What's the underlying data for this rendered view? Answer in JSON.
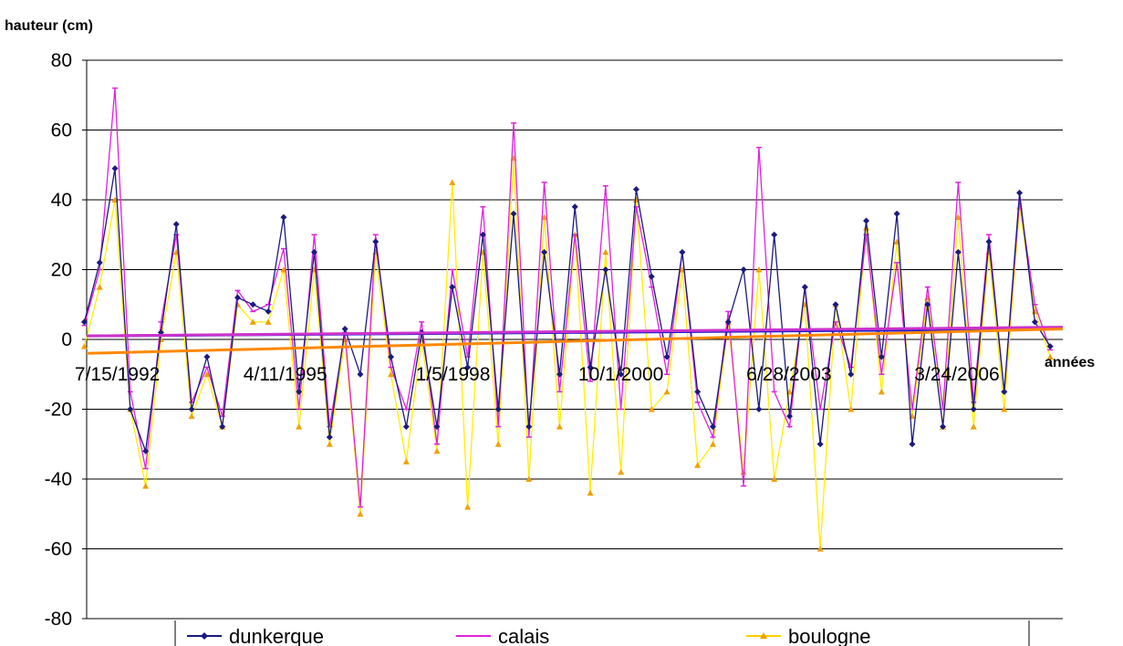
{
  "chart_data": {
    "type": "line",
    "ylabel": "hauteur (cm)",
    "xlabel": "années",
    "ylim": [
      -80,
      80
    ],
    "yticks": [
      80,
      60,
      40,
      20,
      0,
      -20,
      -40,
      -60,
      -80
    ],
    "xticks": [
      "7/15/1992",
      "4/11/1995",
      "1/5/1998",
      "10/1/2000",
      "6/28/2003",
      "3/24/2006"
    ],
    "xlim": [
      "1992-01-15",
      "2007-12-15"
    ],
    "grid": true,
    "legend_position": "bottom",
    "series": [
      {
        "name": "dunkerque",
        "color": "#1a1a80",
        "marker": "diamond",
        "x": [
          "1992-01",
          "1992-04",
          "1992-07",
          "1992-10",
          "1993-01",
          "1993-04",
          "1993-07",
          "1993-10",
          "1994-01",
          "1994-04",
          "1994-07",
          "1994-10",
          "1995-01",
          "1995-04",
          "1995-07",
          "1995-10",
          "1996-01",
          "1996-04",
          "1996-07",
          "1996-10",
          "1997-01",
          "1997-04",
          "1997-07",
          "1997-10",
          "1998-01",
          "1998-04",
          "1998-07",
          "1998-10",
          "1999-01",
          "1999-04",
          "1999-07",
          "1999-10",
          "2000-01",
          "2000-04",
          "2000-07",
          "2000-10",
          "2001-01",
          "2001-04",
          "2001-07",
          "2001-10",
          "2002-01",
          "2002-04",
          "2002-07",
          "2002-10",
          "2003-01",
          "2003-04",
          "2003-07",
          "2003-10",
          "2004-01",
          "2004-04",
          "2004-07",
          "2004-10",
          "2005-01",
          "2005-04",
          "2005-07",
          "2005-10",
          "2006-01",
          "2006-04",
          "2006-07",
          "2006-10",
          "2007-01",
          "2007-04",
          "2007-07",
          "2007-10"
        ],
        "y": [
          5,
          22,
          49,
          -20,
          -32,
          2,
          33,
          -20,
          -5,
          -25,
          12,
          10,
          8,
          35,
          -15,
          25,
          -28,
          3,
          -10,
          28,
          -5,
          -25,
          2,
          -25,
          15,
          -8,
          30,
          -20,
          36,
          -25,
          25,
          -10,
          38,
          -8,
          20,
          -10,
          43,
          18,
          -5,
          25,
          -15,
          -25,
          5,
          20,
          -20,
          30,
          -22,
          15,
          -30,
          10,
          -10,
          34,
          -5,
          36,
          -30,
          10,
          -25,
          25,
          -20,
          28,
          -15,
          42,
          5,
          -2
        ],
        "trend": [
          1,
          3
        ]
      },
      {
        "name": "calais",
        "color": "#e020e0",
        "marker": "dash",
        "x": [
          "1992-01",
          "1992-04",
          "1992-07",
          "1992-10",
          "1993-01",
          "1993-04",
          "1993-07",
          "1993-10",
          "1994-01",
          "1994-04",
          "1994-07",
          "1994-10",
          "1995-01",
          "1995-04",
          "1995-07",
          "1995-10",
          "1996-01",
          "1996-04",
          "1996-07",
          "1996-10",
          "1997-01",
          "1997-04",
          "1997-07",
          "1997-10",
          "1998-01",
          "1998-04",
          "1998-07",
          "1998-10",
          "1999-01",
          "1999-04",
          "1999-07",
          "1999-10",
          "2000-01",
          "2000-04",
          "2000-07",
          "2000-10",
          "2001-01",
          "2001-04",
          "2001-07",
          "2001-10",
          "2002-01",
          "2002-04",
          "2002-07",
          "2002-10",
          "2003-01",
          "2003-04",
          "2003-07",
          "2003-10",
          "2004-01",
          "2004-04",
          "2004-07",
          "2004-10",
          "2005-01",
          "2005-04",
          "2005-07",
          "2005-10",
          "2006-01",
          "2006-04",
          "2006-07",
          "2006-10",
          "2007-01",
          "2007-04",
          "2007-07",
          "2007-10"
        ],
        "y": [
          4,
          20,
          72,
          -15,
          -37,
          5,
          30,
          -18,
          -8,
          -22,
          14,
          8,
          10,
          26,
          -20,
          30,
          -25,
          2,
          -48,
          30,
          -8,
          -20,
          5,
          -30,
          20,
          -5,
          38,
          -25,
          62,
          -28,
          45,
          -15,
          30,
          -12,
          44,
          -20,
          38,
          15,
          -10,
          25,
          -18,
          -28,
          8,
          -42,
          55,
          -15,
          -25,
          15,
          -20,
          5,
          -8,
          30,
          -10,
          22,
          -20,
          15,
          -20,
          45,
          -18,
          30,
          -15,
          40,
          10,
          -3
        ],
        "trend": [
          1,
          3.5
        ]
      },
      {
        "name": "boulogne",
        "color": "#ffee00",
        "marker": "triangle",
        "x": [
          "1992-01",
          "1992-04",
          "1992-07",
          "1992-10",
          "1993-01",
          "1993-04",
          "1993-07",
          "1993-10",
          "1994-01",
          "1994-04",
          "1994-07",
          "1994-10",
          "1995-01",
          "1995-04",
          "1995-07",
          "1995-10",
          "1996-01",
          "1996-04",
          "1996-07",
          "1996-10",
          "1997-01",
          "1997-04",
          "1997-07",
          "1997-10",
          "1998-01",
          "1998-04",
          "1998-07",
          "1998-10",
          "1999-01",
          "1999-04",
          "1999-07",
          "1999-10",
          "2000-01",
          "2000-04",
          "2000-07",
          "2000-10",
          "2001-01",
          "2001-04",
          "2001-07",
          "2001-10",
          "2002-01",
          "2002-04",
          "2002-07",
          "2002-10",
          "2003-01",
          "2003-04",
          "2003-07",
          "2003-10",
          "2004-01",
          "2004-04",
          "2004-07",
          "2004-10",
          "2005-01",
          "2005-04",
          "2005-07",
          "2005-10",
          "2006-01",
          "2006-04",
          "2006-07",
          "2006-10",
          "2007-01",
          "2007-04",
          "2007-07",
          "2007-10"
        ],
        "y": [
          -2,
          15,
          40,
          -20,
          -42,
          0,
          25,
          -22,
          -10,
          -25,
          10,
          5,
          5,
          20,
          -25,
          20,
          -30,
          0,
          -50,
          25,
          -10,
          -35,
          0,
          -32,
          45,
          -48,
          25,
          -30,
          52,
          -40,
          35,
          -25,
          30,
          -44,
          25,
          -38,
          40,
          -20,
          -15,
          20,
          -36,
          -30,
          5,
          -38,
          20,
          -40,
          -15,
          10,
          -60,
          10,
          -20,
          32,
          -15,
          28,
          -22,
          12,
          -25,
          35,
          -25,
          25,
          -20,
          38,
          8,
          -5
        ],
        "trend": [
          -4,
          3
        ]
      }
    ]
  }
}
